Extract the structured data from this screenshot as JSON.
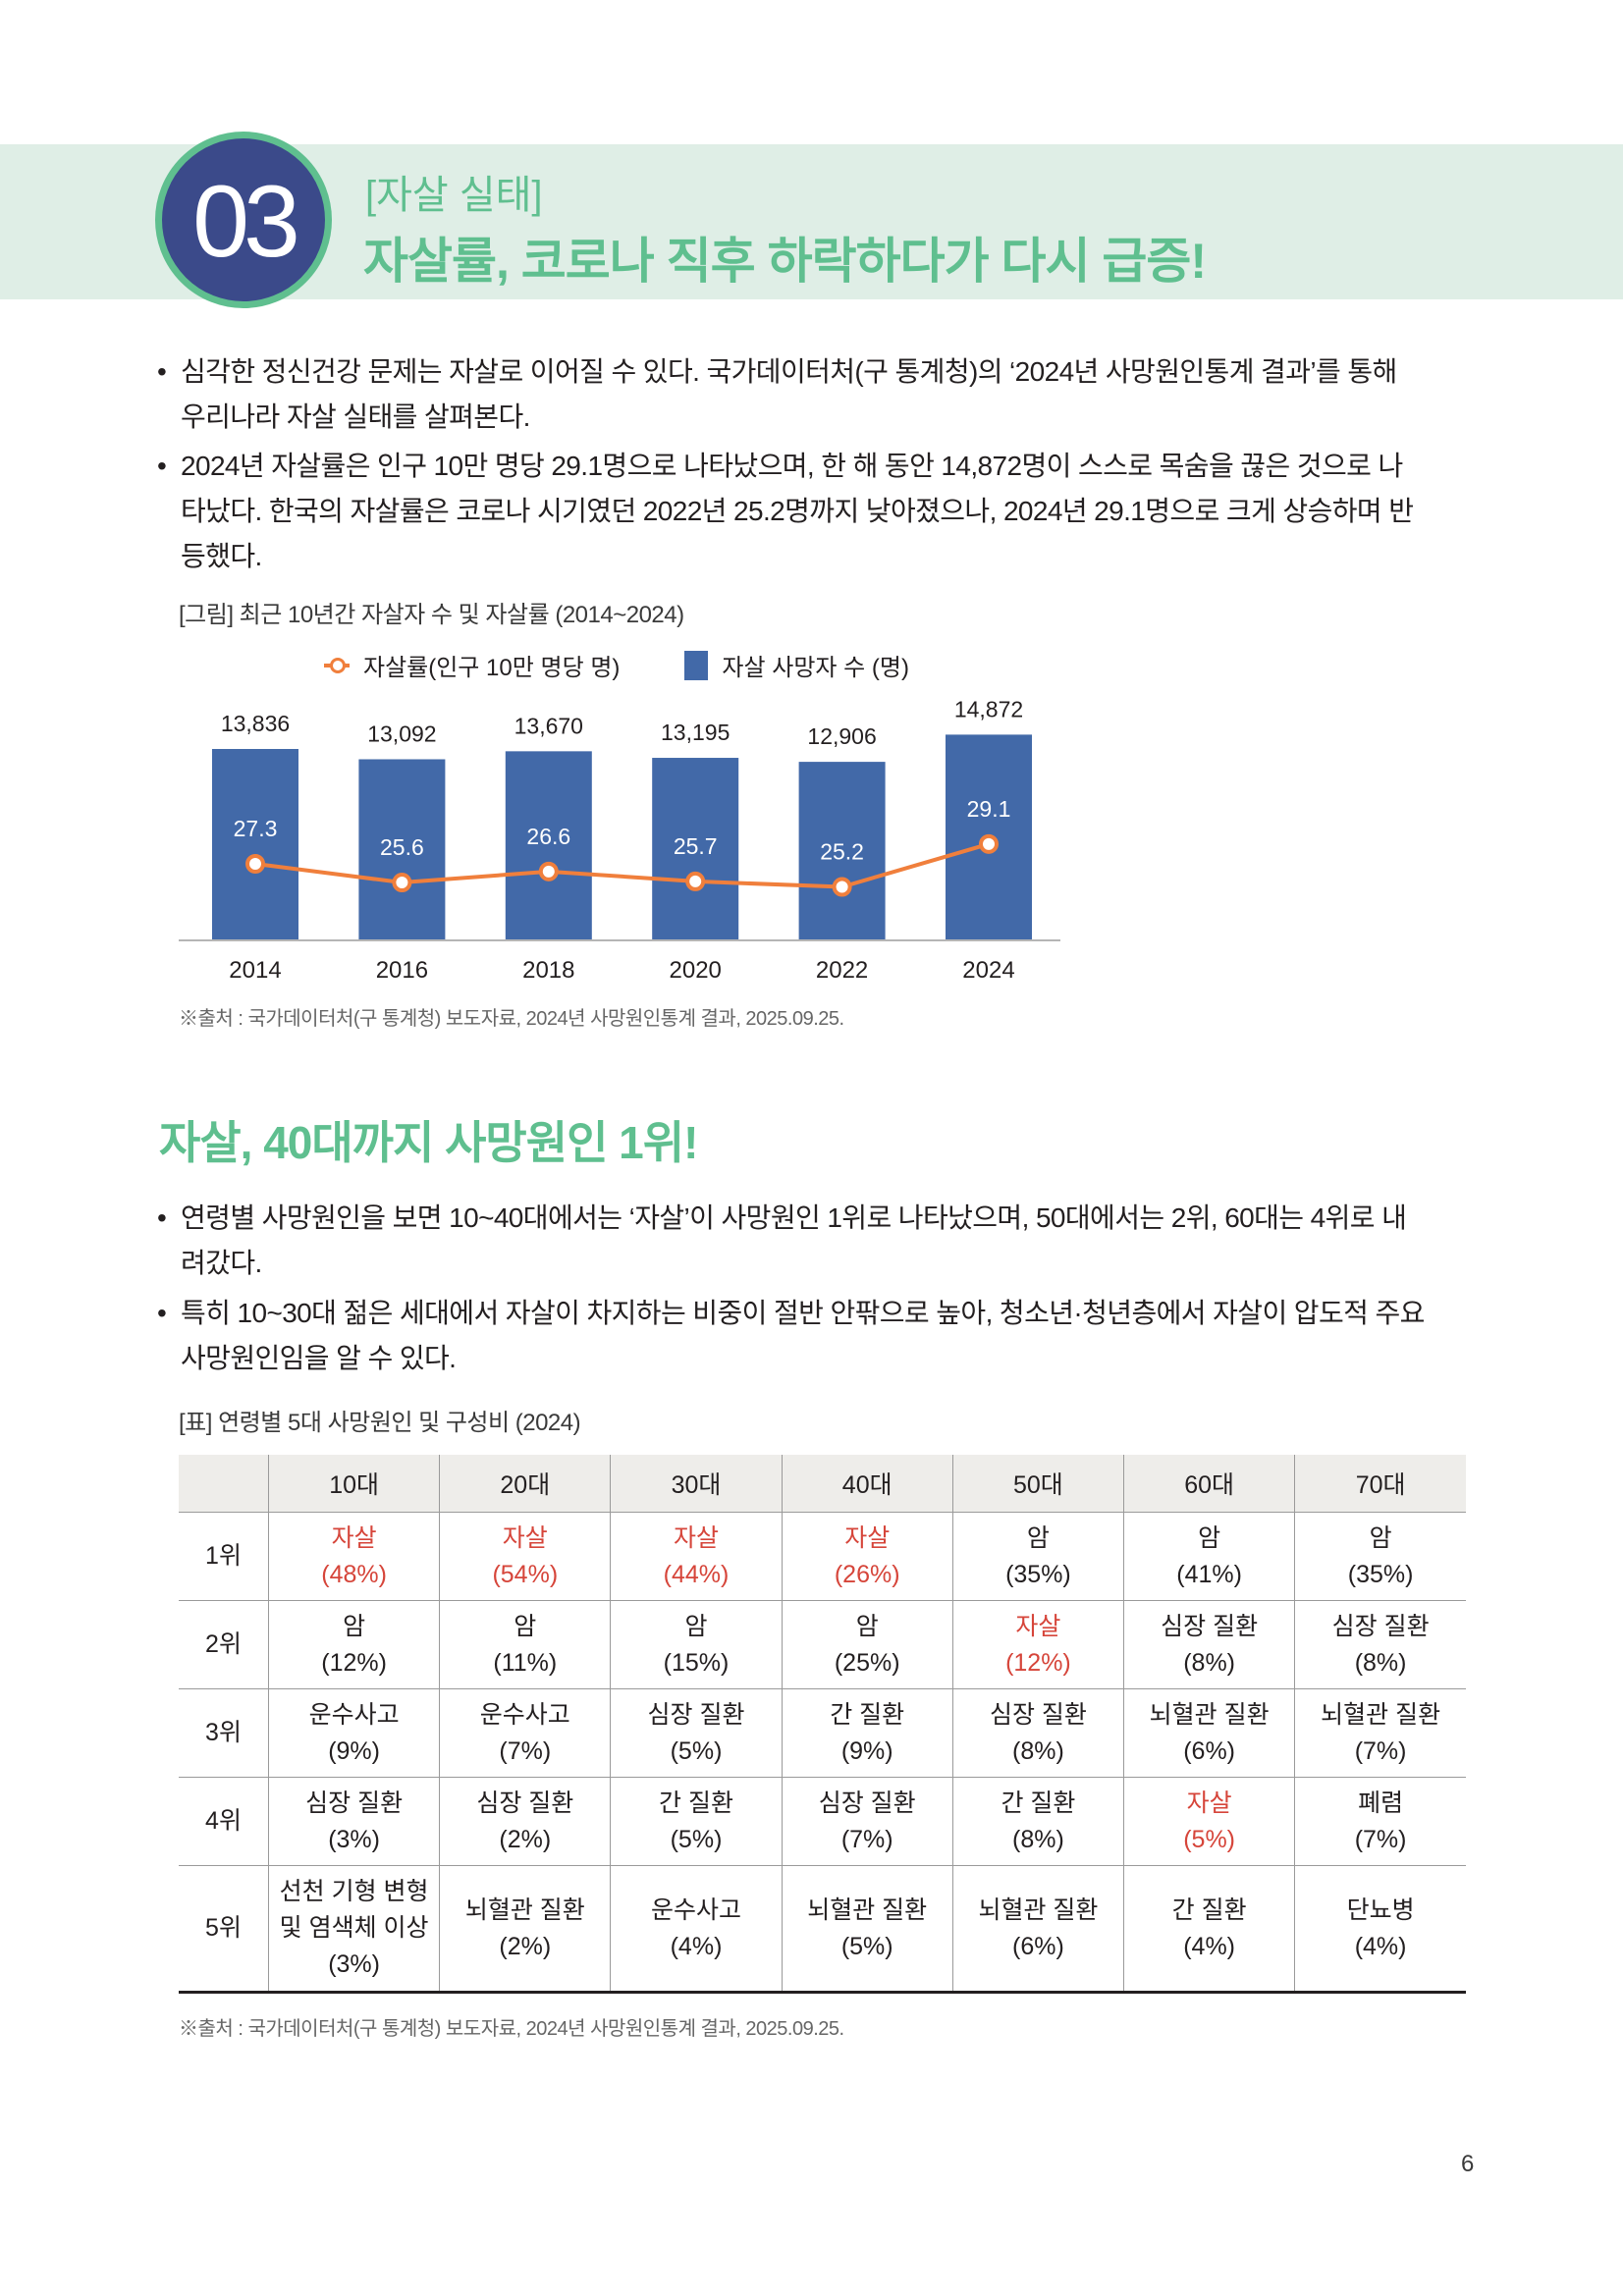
{
  "header": {
    "number": "03",
    "kicker": "[자살 실태]",
    "headline": "자살률, 코로나 직후 하락하다가 다시 급증!"
  },
  "intro_bullets": [
    {
      "line1": "심각한 정신건강 문제는 자살로 이어질 수 있다. 국가데이터처(구 통계청)의 ‘2024년 사망원인통계 결과’를 통해",
      "line2": "우리나라 자살 실태를 살펴본다."
    },
    {
      "line1": "2024년 자살률은 인구 10만 명당 29.1명으로 나타났으며, 한 해 동안 14,872명이 스스로 목숨을 끊은 것으로 나",
      "line2": "타났다. 한국의 자살률은 코로나 시기였던 2022년 25.2명까지 낮아졌으나, 2024년 29.1명으로 크게 상승하며 반",
      "line3": "등했다."
    }
  ],
  "figure": {
    "caption": "[그림] 최근 10년간 자살자 수 및 자살률 (2014~2024)",
    "source": "※출처 : 국가데이터처(구 통계청) 보도자료, 2024년 사망원인통계 결과, 2025.09.25."
  },
  "chart_data": {
    "type": "bar",
    "title": "최근 10년간 자살자 수 및 자살률 (2014~2024)",
    "categories": [
      "2014",
      "2016",
      "2018",
      "2020",
      "2022",
      "2024"
    ],
    "series": [
      {
        "name": "자살 사망자 수 (명)",
        "type": "bar",
        "color": "#4269a8",
        "values": [
          13836,
          13092,
          13670,
          13195,
          12906,
          14872
        ],
        "labels": [
          "13,836",
          "13,092",
          "13,670",
          "13,195",
          "12,906",
          "14,872"
        ]
      },
      {
        "name": "자살률(인구 10만 명당 명)",
        "type": "line",
        "color": "#f07f3c",
        "values": [
          27.3,
          25.6,
          26.6,
          25.7,
          25.2,
          29.1
        ],
        "labels": [
          "27.3",
          "25.6",
          "26.6",
          "25.7",
          "25.2",
          "29.1"
        ]
      }
    ],
    "legend": [
      "자살률(인구 10만 명당 명)",
      "자살 사망자 수 (명)"
    ],
    "legend_position": "top",
    "xlabel": "",
    "ylabel": "",
    "grid": false
  },
  "section2": {
    "title": "자살, 40대까지 사망원인 1위!",
    "bullets": [
      {
        "line1": "연령별 사망원인을 보면 10~40대에서는 ‘자살’이 사망원인 1위로 나타났으며, 50대에서는 2위, 60대는 4위로 내",
        "line2": "려갔다."
      },
      {
        "line1": "특히 10~30대 젊은 세대에서 자살이 차지하는 비중이 절반 안팎으로 높아, 청소년·청년층에서 자살이 압도적 주요",
        "line2": "사망원인임을 알 수 있다."
      }
    ]
  },
  "table": {
    "caption": "[표] 연령별 5대 사망원인 및 구성비 (2024)",
    "columns": [
      "",
      "10대",
      "20대",
      "30대",
      "40대",
      "50대",
      "60대",
      "70대"
    ],
    "rows": [
      {
        "rank": "1위",
        "cells": [
          {
            "name": "자살",
            "pct": "(48%)",
            "hl": true
          },
          {
            "name": "자살",
            "pct": "(54%)",
            "hl": true
          },
          {
            "name": "자살",
            "pct": "(44%)",
            "hl": true
          },
          {
            "name": "자살",
            "pct": "(26%)",
            "hl": true
          },
          {
            "name": "암",
            "pct": "(35%)"
          },
          {
            "name": "암",
            "pct": "(41%)"
          },
          {
            "name": "암",
            "pct": "(35%)"
          }
        ]
      },
      {
        "rank": "2위",
        "cells": [
          {
            "name": "암",
            "pct": "(12%)"
          },
          {
            "name": "암",
            "pct": "(11%)"
          },
          {
            "name": "암",
            "pct": "(15%)"
          },
          {
            "name": "암",
            "pct": "(25%)"
          },
          {
            "name": "자살",
            "pct": "(12%)",
            "hl": true
          },
          {
            "name": "심장 질환",
            "pct": "(8%)"
          },
          {
            "name": "심장 질환",
            "pct": "(8%)"
          }
        ]
      },
      {
        "rank": "3위",
        "cells": [
          {
            "name": "운수사고",
            "pct": "(9%)"
          },
          {
            "name": "운수사고",
            "pct": "(7%)"
          },
          {
            "name": "심장 질환",
            "pct": "(5%)"
          },
          {
            "name": "간 질환",
            "pct": "(9%)"
          },
          {
            "name": "심장 질환",
            "pct": "(8%)"
          },
          {
            "name": "뇌혈관 질환",
            "pct": "(6%)"
          },
          {
            "name": "뇌혈관 질환",
            "pct": "(7%)"
          }
        ]
      },
      {
        "rank": "4위",
        "cells": [
          {
            "name": "심장 질환",
            "pct": "(3%)"
          },
          {
            "name": "심장 질환",
            "pct": "(2%)"
          },
          {
            "name": "간 질환",
            "pct": "(5%)"
          },
          {
            "name": "심장 질환",
            "pct": "(7%)"
          },
          {
            "name": "간 질환",
            "pct": "(8%)"
          },
          {
            "name": "자살",
            "pct": "(5%)",
            "hl": true
          },
          {
            "name": "폐렴",
            "pct": "(7%)"
          }
        ]
      },
      {
        "rank": "5위",
        "cells": [
          {
            "name": "선천 기형 변형 및 염색체 이상",
            "pct": "(3%)"
          },
          {
            "name": "뇌혈관 질환",
            "pct": "(2%)"
          },
          {
            "name": "운수사고",
            "pct": "(4%)"
          },
          {
            "name": "뇌혈관 질환",
            "pct": "(5%)"
          },
          {
            "name": "뇌혈관 질환",
            "pct": "(6%)"
          },
          {
            "name": "간 질환",
            "pct": "(4%)"
          },
          {
            "name": "단뇨병",
            "pct": "(4%)"
          }
        ]
      }
    ],
    "source": "※출처 : 국가데이터처(구 통계청) 보도자료, 2024년 사망원인통계 결과, 2025.09.25.",
    "highlight_color": "#d6453a"
  },
  "page_number": "6"
}
